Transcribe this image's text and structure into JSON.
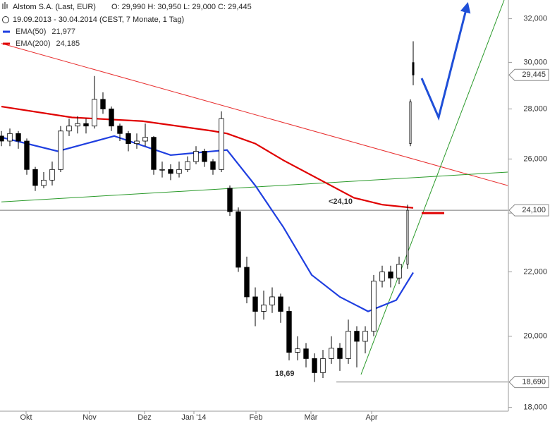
{
  "chart_data": {
    "type": "candlestick",
    "title": "Alstom S.A. (Last, EUR)",
    "ohlc_text": "O: 29,990  H: 30,950  L: 29,000  C: 29,445",
    "subtitle": "19.09.2013 - 30.04.2014 (CEST, 7 Monate, 1 Tag)",
    "log_scale": true,
    "ylim": [
      17900,
      32900
    ],
    "yticks": [
      {
        "value": 18000,
        "label": "18,000"
      },
      {
        "value": 20000,
        "label": "20,000"
      },
      {
        "value": 22000,
        "label": "22,000"
      },
      {
        "value": 24000,
        "label": "24,000"
      },
      {
        "value": 26000,
        "label": "26,000"
      },
      {
        "value": 28000,
        "label": "28,000"
      },
      {
        "value": 30000,
        "label": "30,000"
      },
      {
        "value": 32000,
        "label": "32,000"
      }
    ],
    "xlim": [
      -0.5,
      179.5
    ],
    "xticks": [
      {
        "value": 8.75,
        "label": "Okt"
      },
      {
        "value": 31.25,
        "label": "Nov"
      },
      {
        "value": 50.75,
        "label": "Dez"
      },
      {
        "value": 68.25,
        "label": "Jan '14"
      },
      {
        "value": 90.25,
        "label": "Feb"
      },
      {
        "value": 109.75,
        "label": "Mär"
      },
      {
        "value": 131.25,
        "label": "Apr"
      }
    ],
    "candles": {
      "x": [
        0,
        3,
        6,
        9,
        12,
        15,
        18,
        21,
        24,
        27,
        30,
        33,
        36,
        39,
        42,
        45,
        48,
        51,
        54,
        57,
        60,
        63,
        66,
        69,
        72,
        75,
        78,
        81,
        84,
        87,
        90,
        93,
        96,
        99,
        102,
        105,
        108,
        111,
        114,
        117,
        120,
        123,
        126,
        129,
        132,
        135,
        138,
        141,
        144,
        145,
        146
      ],
      "open": [
        26900,
        26700,
        27000,
        26700,
        25600,
        25000,
        25200,
        25600,
        27100,
        27300,
        27400,
        27300,
        28400,
        28000,
        27300,
        27000,
        26600,
        26700,
        26850,
        25600,
        25600,
        25450,
        25600,
        25900,
        26300,
        25900,
        25600,
        24900,
        24050,
        22150,
        21200,
        20750,
        20950,
        21200,
        20750,
        19530,
        19630,
        19350,
        18950,
        19350,
        19650,
        19350,
        20150,
        19850,
        20150,
        21700,
        22000,
        21800,
        22250,
        26600,
        29990
      ],
      "high": [
        27100,
        27200,
        27100,
        26800,
        25700,
        25500,
        25900,
        27300,
        27600,
        27700,
        27600,
        29400,
        28700,
        28100,
        27400,
        27100,
        27000,
        27400,
        26900,
        25900,
        25800,
        25900,
        26100,
        26500,
        26400,
        26000,
        27900,
        25000,
        24200,
        22500,
        21500,
        21400,
        21500,
        21300,
        20900,
        20000,
        19800,
        19500,
        19600,
        20000,
        19800,
        20500,
        20300,
        20300,
        21900,
        22200,
        22200,
        22500,
        24300,
        28400,
        30950
      ],
      "low": [
        26500,
        26500,
        26400,
        25400,
        24800,
        24900,
        25000,
        25500,
        26900,
        27000,
        27000,
        27200,
        27800,
        27100,
        26700,
        26300,
        26400,
        26500,
        25400,
        25300,
        25200,
        25300,
        25500,
        25800,
        25700,
        25400,
        25500,
        23900,
        22000,
        21000,
        20300,
        20500,
        20700,
        20400,
        19300,
        19300,
        19100,
        18690,
        18800,
        19200,
        19000,
        19200,
        19100,
        19500,
        20000,
        21500,
        21500,
        21600,
        22100,
        26500,
        29000
      ],
      "close": [
        26700,
        27000,
        26700,
        25600,
        25000,
        25200,
        25600,
        27100,
        27300,
        27400,
        27300,
        28400,
        28000,
        27300,
        27000,
        26600,
        26700,
        26850,
        25600,
        25600,
        25450,
        25600,
        25900,
        26300,
        25900,
        25600,
        27600,
        24050,
        22150,
        21200,
        20750,
        20950,
        21200,
        20750,
        19530,
        19630,
        19350,
        18950,
        19350,
        19650,
        19350,
        20150,
        19850,
        20150,
        21700,
        22000,
        21800,
        22250,
        24100,
        28300,
        29445
      ],
      "up_color": "#ffffff",
      "down_color": "#000000"
    },
    "series": [
      {
        "name": "EMA(50)",
        "last_label": "21,977",
        "color": "#1f3fe0",
        "x": [
          0,
          20,
          40,
          60,
          75,
          80,
          90,
          100,
          110,
          120,
          130,
          140,
          146
        ],
        "values": [
          26850,
          26300,
          26900,
          26150,
          26300,
          26350,
          25000,
          23500,
          21900,
          21200,
          20750,
          21100,
          21977
        ]
      },
      {
        "name": "EMA(200)",
        "last_label": "24,185",
        "color": "#e00000",
        "x": [
          0,
          25,
          50,
          75,
          80,
          90,
          100,
          115,
          125,
          135,
          146
        ],
        "values": [
          28100,
          27650,
          27500,
          27100,
          27000,
          26600,
          25950,
          25100,
          24550,
          24300,
          24185
        ]
      }
    ],
    "trendlines": [
      {
        "color": "#e83030",
        "x": [
          0,
          179.5
        ],
        "values": [
          30850,
          25000
        ],
        "arrow": false
      },
      {
        "color": "#2a9a2a",
        "x": [
          0,
          179.5
        ],
        "values": [
          24400,
          25500
        ],
        "arrow": false
      },
      {
        "color": "#2a9a2a",
        "x": [
          127.5,
          178.25
        ],
        "values": [
          18900,
          32900
        ],
        "arrow": false
      },
      {
        "color": "#e00000",
        "x": [
          149,
          157
        ],
        "values": [
          24000,
          24000
        ],
        "arrow": false
      },
      {
        "color": "#1f4fd8",
        "x": [
          149,
          155,
          165.25
        ],
        "values": [
          29300,
          27650,
          32700
        ],
        "arrow": true
      }
    ],
    "levels": [
      {
        "value": 29445,
        "label": "29,445",
        "from": null
      },
      {
        "value": 24100,
        "label": "24,100",
        "from": -0.5
      },
      {
        "value": 18690,
        "label": "18,690",
        "from": 118.75
      }
    ],
    "annotations": [
      {
        "text": "<24,10",
        "color": "#e00000"
      },
      {
        "text": "18,69",
        "color": "#777777"
      }
    ]
  }
}
